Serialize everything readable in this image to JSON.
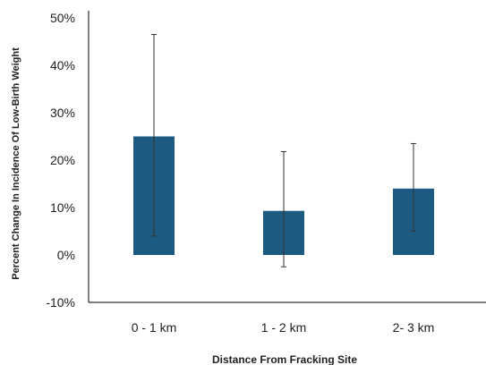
{
  "chart_data": {
    "type": "bar",
    "title": "",
    "xlabel": "Distance From Fracking Site",
    "ylabel": "Percent Change In Incidence Of Low-Birth Weight",
    "categories": [
      "0 - 1 km",
      "1 - 2 km",
      "2- 3 km"
    ],
    "values": [
      25,
      9.3,
      14
    ],
    "error_low": [
      4,
      -2.5,
      5
    ],
    "error_high": [
      46.5,
      21.8,
      23.5
    ],
    "ylim": [
      -10,
      50
    ],
    "yticks": [
      50,
      40,
      30,
      20,
      10,
      0,
      -10
    ],
    "ytick_labels": [
      "50%",
      "40%",
      "30%",
      "20%",
      "10%",
      "0%",
      "-10%"
    ],
    "grid": false,
    "bar_color": "#1d5a82",
    "axis_color": "#000000"
  }
}
